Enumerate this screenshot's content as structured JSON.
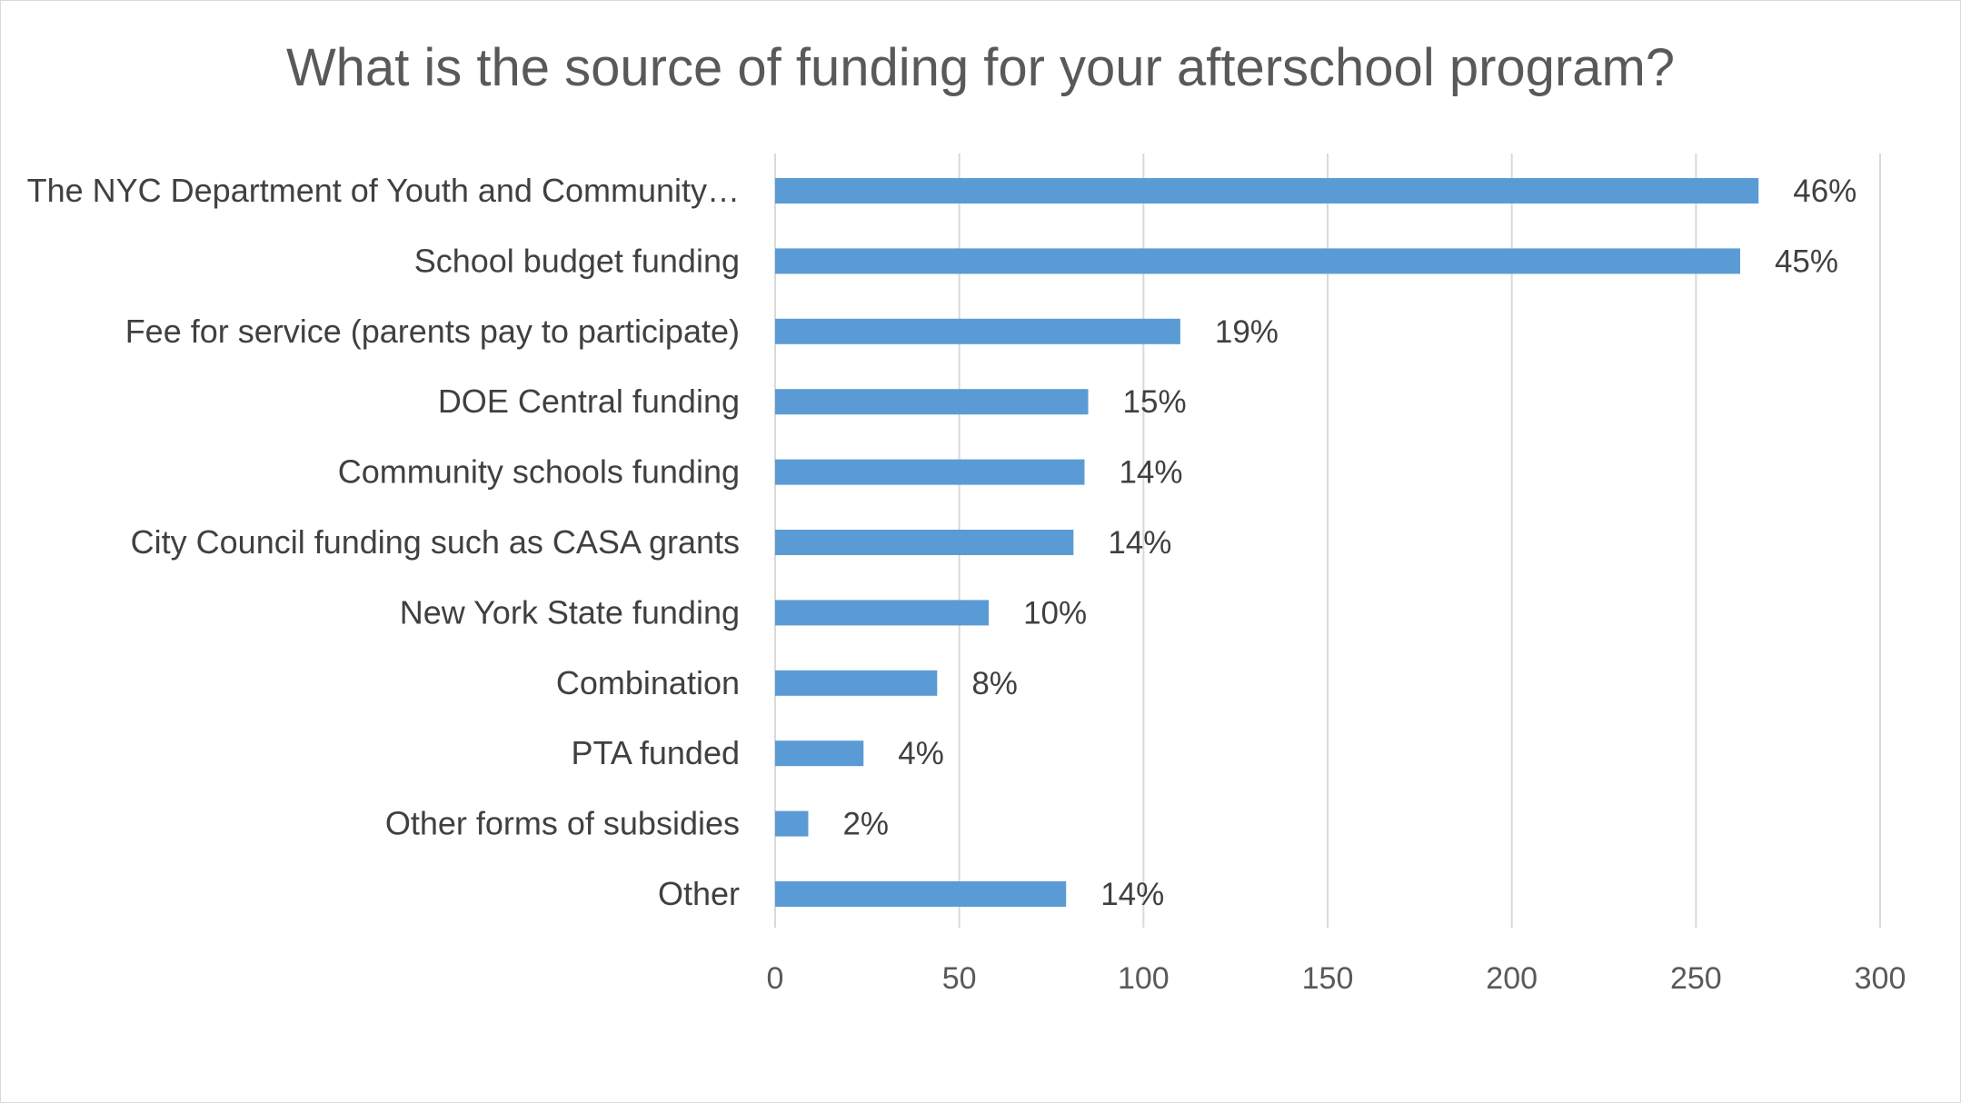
{
  "chart_data": {
    "type": "bar",
    "orientation": "horizontal",
    "title": "What is the source of funding for your afterschool program?",
    "xlabel": "",
    "ylabel": "",
    "categories": [
      "The NYC Department of Youth and Community…",
      "School budget funding",
      "Fee for service (parents pay to participate)",
      "DOE Central funding",
      "Community schools funding",
      "City Council funding such as CASA grants",
      "New York State funding",
      "Combination",
      "PTA funded",
      "Other forms of subsidies",
      "Other"
    ],
    "values": [
      267,
      262,
      110,
      85,
      84,
      81,
      58,
      44,
      24,
      9,
      79
    ],
    "data_labels": [
      "46%",
      "45%",
      "19%",
      "15%",
      "14%",
      "14%",
      "10%",
      "8%",
      "4%",
      "2%",
      "14%"
    ],
    "xlim": [
      0,
      300
    ],
    "xticks": [
      "0",
      "50",
      "100",
      "150",
      "200",
      "250",
      "300"
    ],
    "grid": true,
    "legend": "none",
    "bar_color": "#5b9bd5",
    "grid_color": "#d9d9d9"
  }
}
